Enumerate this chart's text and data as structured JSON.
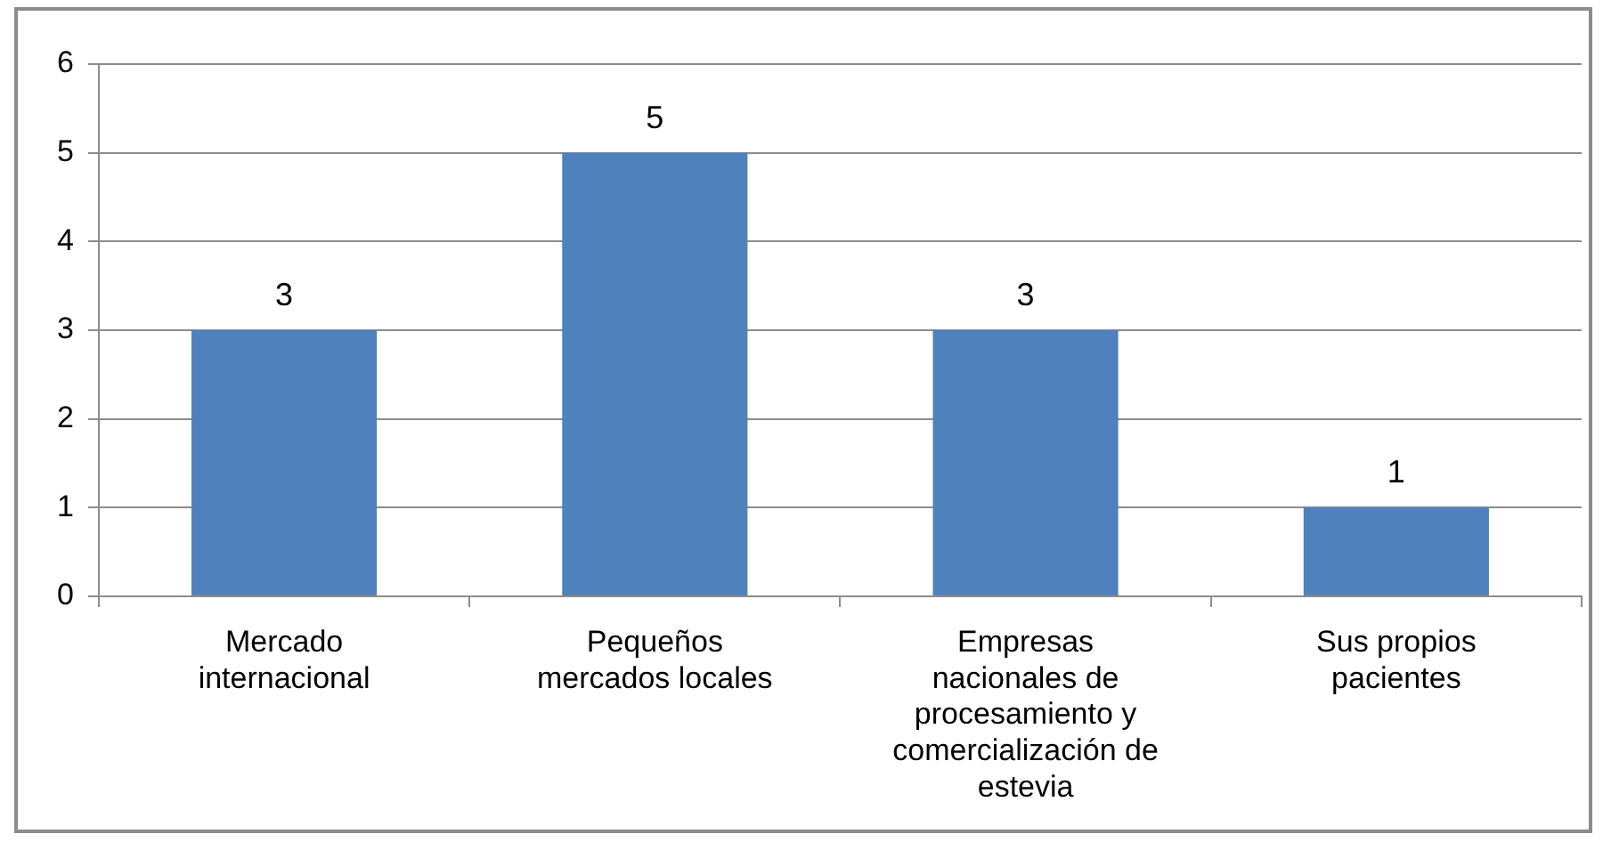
{
  "chart_data": {
    "type": "bar",
    "categories": [
      "Mercado internacional",
      "Pequeños mercados locales",
      "Empresas nacionales de procesamiento y comercialización de estevia",
      "Sus propios pacientes"
    ],
    "values": [
      3,
      5,
      3,
      1
    ],
    "color": "#4f81bd",
    "ylim": [
      0,
      6
    ],
    "yticks": [
      0,
      1,
      2,
      3,
      4,
      5,
      6
    ],
    "grid": "y",
    "data_labels": true,
    "legend": false
  }
}
